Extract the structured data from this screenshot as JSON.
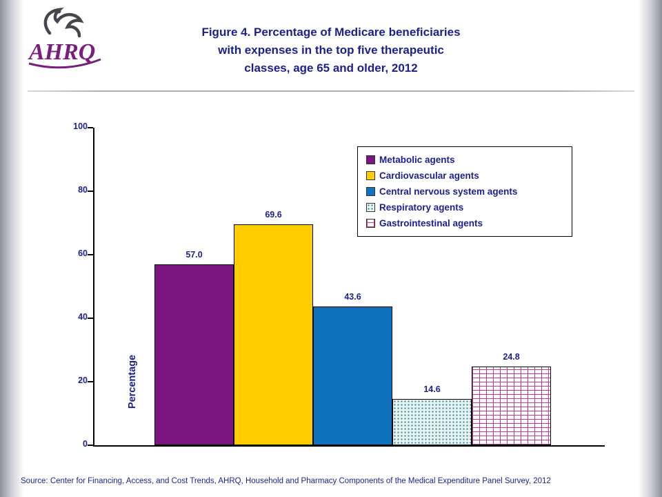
{
  "header": {
    "logo_text": "AHRQ",
    "title": "Figure 4. Percentage of Medicare beneficiaries\nwith expenses in the top five therapeutic\nclasses, age 65 and older, 2012",
    "title_color": "#1b1f8f",
    "logo_color": "#7a1e7e"
  },
  "chart_data": {
    "type": "bar",
    "categories": [
      "Metabolic agents",
      "Cardiovascular agents",
      "Central nervous system agents",
      "Respiratory agents",
      "Gastrointestinal agents"
    ],
    "values": [
      57.0,
      69.6,
      43.6,
      14.6,
      24.8
    ],
    "value_labels": [
      "57.0",
      "69.6",
      "43.6",
      "14.6",
      "24.8"
    ],
    "title": "",
    "xlabel": "",
    "ylabel": "Percentage",
    "ylim": [
      0,
      100
    ],
    "yticks": [
      0,
      20,
      40,
      60,
      80,
      100
    ],
    "grid": false,
    "legend_position": "top-right",
    "bar_styles": [
      {
        "fill": "#7b1580",
        "pattern": "solid"
      },
      {
        "fill": "#ffcc00",
        "pattern": "solid"
      },
      {
        "fill": "#1072bc",
        "pattern": "solid"
      },
      {
        "fill": "#e8f3f3",
        "pattern": "dots",
        "pattern_color": "#35858e"
      },
      {
        "fill": "#ffffff",
        "pattern": "bricks",
        "pattern_color": "#c2388e"
      }
    ]
  },
  "footer": {
    "source": "Source: Center for Financing, Access, and Cost Trends, AHRQ, Household and Pharmacy Components of the Medical Expenditure Panel Survey, 2012"
  }
}
